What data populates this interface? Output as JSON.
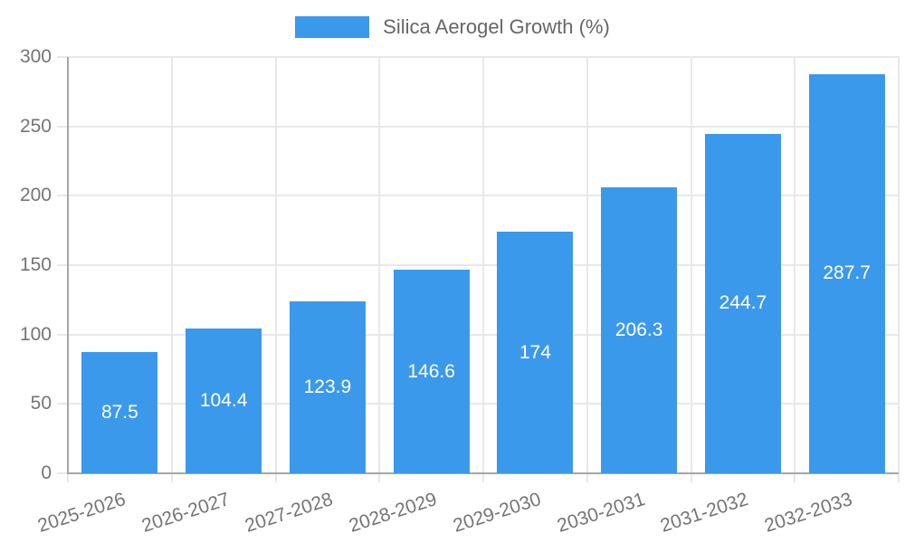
{
  "legend": {
    "label": "Silica Aerogel Growth (%)"
  },
  "colors": {
    "bar": "#3B99EC",
    "grid": "#E8E8E8",
    "axis": "#A6A6A6",
    "tick_text": "#757575",
    "legend_text": "#666666",
    "bar_label_text": "#FFFFFF",
    "background": "#FFFFFF"
  },
  "chart_data": {
    "type": "bar",
    "title": "",
    "categories": [
      "2025-2026",
      "2026-2027",
      "2027-2028",
      "2028-2029",
      "2029-2030",
      "2030-2031",
      "2031-2032",
      "2032-2033"
    ],
    "series": [
      {
        "name": "Silica Aerogel Growth (%)",
        "values": [
          87.5,
          104.4,
          123.9,
          146.6,
          174,
          206.3,
          244.7,
          287.7
        ]
      }
    ],
    "value_labels": [
      "87.5",
      "104.4",
      "123.9",
      "146.6",
      "174",
      "206.3",
      "244.7",
      "287.7"
    ],
    "xlabel": "",
    "ylabel": "",
    "ylim": [
      0,
      300
    ],
    "y_ticks": [
      0,
      50,
      100,
      150,
      200,
      250,
      300
    ],
    "grid": "on",
    "legend_position": "top",
    "x_tick_rotation_deg": -18,
    "bar_value_labels_inside": true
  }
}
